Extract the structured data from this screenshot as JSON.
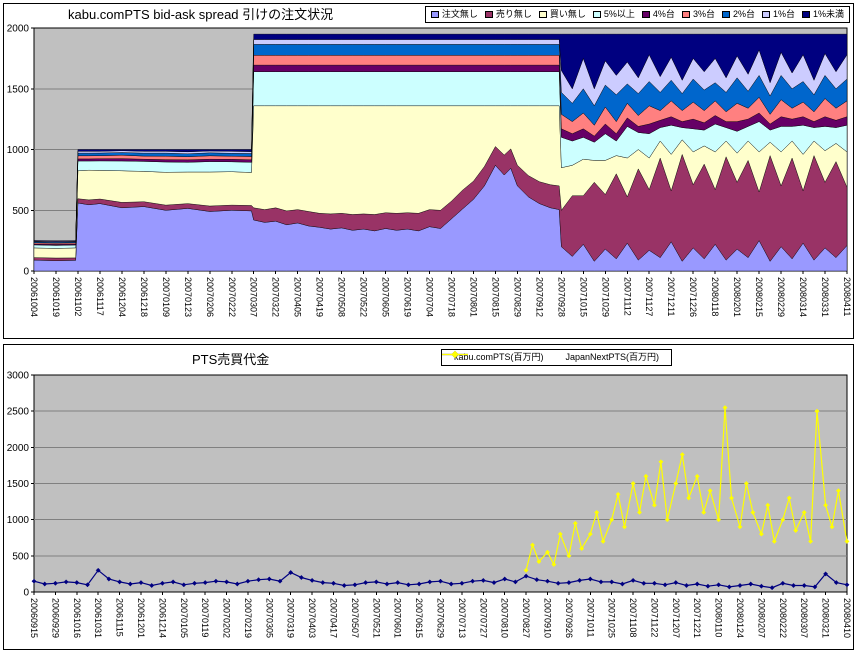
{
  "page": {
    "background": "#FFFFFF",
    "plot_background": "#C0C0C0",
    "grid_color": "#808080"
  },
  "chart_data": [
    {
      "type": "area",
      "stacked": true,
      "title": "kabu.comPTS bid-ask spread 引けの注文状況",
      "xlabel": "",
      "ylabel": "",
      "ylim": [
        0,
        2000
      ],
      "yticks": [
        0,
        500,
        1000,
        1500,
        2000
      ],
      "grid": true,
      "legend_position": "top-right",
      "plot_bg": "#C0C0C0",
      "grid_color": "#808080",
      "tick_labels": [
        "20061004",
        "20061019",
        "20061102",
        "20061117",
        "20061204",
        "20061218",
        "20070109",
        "20070123",
        "20070206",
        "20070222",
        "20070307",
        "20070322",
        "20070405",
        "20070419",
        "20070508",
        "20070522",
        "20070605",
        "20070619",
        "20070704",
        "20070718",
        "20070801",
        "20070815",
        "20070829",
        "20070912",
        "20070928",
        "20071015",
        "20071029",
        "20071112",
        "20071127",
        "20071211",
        "20071226",
        "20080118",
        "20080201",
        "20080215",
        "20080229",
        "20080314",
        "20080331",
        "20080411"
      ],
      "x": [
        0,
        1,
        1.9,
        2,
        2.5,
        3,
        4,
        5,
        6,
        7,
        8,
        9,
        9.9,
        10,
        10.5,
        11,
        11.5,
        12,
        12.5,
        13,
        13.5,
        14,
        14.5,
        15,
        15.5,
        16,
        16.5,
        17,
        17.5,
        18,
        18.5,
        19,
        19.5,
        20,
        20.5,
        21,
        21.4,
        21.7,
        22,
        22.5,
        23,
        23.5,
        23.9,
        24,
        24.5,
        25,
        25.5,
        26,
        26.5,
        27,
        27.5,
        28,
        28.5,
        29,
        29.5,
        30,
        30.5,
        31,
        31.5,
        32,
        32.5,
        33,
        33.5,
        34,
        34.5,
        35,
        35.5,
        36,
        36.5,
        37
      ],
      "series": [
        {
          "name": "注文無し",
          "color": "#9999FF",
          "values": [
            90,
            85,
            88,
            560,
            545,
            555,
            520,
            530,
            500,
            515,
            490,
            500,
            495,
            420,
            400,
            410,
            380,
            395,
            370,
            360,
            345,
            355,
            335,
            345,
            330,
            350,
            335,
            345,
            330,
            365,
            350,
            430,
            510,
            590,
            700,
            870,
            790,
            845,
            700,
            610,
            555,
            520,
            505,
            200,
            120,
            220,
            80,
            180,
            100,
            230,
            90,
            170,
            110,
            240,
            80,
            190,
            100,
            220,
            90,
            180,
            110,
            250,
            80,
            200,
            100,
            230,
            90,
            190,
            110,
            210
          ]
        },
        {
          "name": "売り無し",
          "color": "#993366",
          "values": [
            20,
            22,
            20,
            35,
            40,
            38,
            45,
            40,
            42,
            40,
            45,
            42,
            44,
            100,
            105,
            110,
            115,
            110,
            120,
            115,
            125,
            120,
            130,
            125,
            135,
            130,
            140,
            135,
            145,
            140,
            150,
            145,
            155,
            150,
            160,
            155,
            165,
            160,
            170,
            175,
            180,
            190,
            195,
            300,
            500,
            400,
            650,
            450,
            700,
            380,
            750,
            500,
            820,
            420,
            880,
            520,
            780,
            450,
            850,
            550,
            800,
            400,
            870,
            500,
            830,
            430,
            860,
            540,
            790,
            480
          ]
        },
        {
          "name": "買い無し",
          "color": "#FFFFCC",
          "values": [
            80,
            78,
            82,
            230,
            245,
            235,
            260,
            250,
            270,
            260,
            280,
            275,
            272,
            840,
            855,
            840,
            865,
            855,
            870,
            885,
            890,
            885,
            895,
            890,
            895,
            880,
            885,
            880,
            885,
            855,
            860,
            785,
            695,
            620,
            500,
            335,
            405,
            355,
            490,
            575,
            625,
            650,
            660,
            350,
            250,
            300,
            180,
            280,
            150,
            320,
            160,
            260,
            140,
            300,
            120,
            270,
            150,
            310,
            130,
            240,
            160,
            330,
            110,
            280,
            140,
            300,
            120,
            260,
            150,
            290
          ]
        },
        {
          "name": "5%以上",
          "color": "#CCFFFF",
          "values": [
            25,
            26,
            24,
            80,
            75,
            78,
            80,
            82,
            85,
            80,
            85,
            82,
            84,
            280,
            280,
            280,
            280,
            280,
            280,
            280,
            280,
            280,
            280,
            280,
            280,
            280,
            280,
            280,
            280,
            280,
            280,
            280,
            280,
            280,
            280,
            280,
            280,
            280,
            280,
            280,
            280,
            280,
            280,
            250,
            200,
            180,
            150,
            220,
            120,
            260,
            140,
            200,
            110,
            240,
            100,
            190,
            130,
            230,
            110,
            180,
            120,
            250,
            100,
            210,
            120,
            240,
            110,
            200,
            130,
            220
          ]
        },
        {
          "name": "4%台",
          "color": "#660066",
          "values": [
            8,
            8,
            8,
            18,
            18,
            18,
            20,
            18,
            20,
            20,
            20,
            20,
            20,
            55,
            55,
            55,
            55,
            55,
            55,
            55,
            55,
            55,
            55,
            55,
            55,
            55,
            55,
            55,
            55,
            55,
            55,
            55,
            55,
            55,
            55,
            55,
            55,
            55,
            55,
            55,
            55,
            55,
            55,
            70,
            60,
            70,
            50,
            80,
            60,
            70,
            50,
            80,
            60,
            70,
            50,
            80,
            60,
            70,
            50,
            80,
            60,
            70,
            50,
            80,
            60,
            70,
            50,
            80,
            60,
            70
          ]
        },
        {
          "name": "3%台",
          "color": "#FF8080",
          "values": [
            10,
            10,
            10,
            25,
            25,
            25,
            28,
            26,
            28,
            26,
            28,
            26,
            27,
            80,
            80,
            80,
            80,
            80,
            80,
            80,
            80,
            80,
            80,
            80,
            80,
            80,
            80,
            80,
            80,
            80,
            80,
            80,
            80,
            80,
            80,
            80,
            80,
            80,
            80,
            80,
            80,
            80,
            80,
            120,
            100,
            130,
            90,
            140,
            100,
            120,
            90,
            150,
            80,
            130,
            90,
            140,
            100,
            120,
            80,
            150,
            90,
            130,
            80,
            140,
            90,
            120,
            80,
            150,
            100,
            130
          ]
        },
        {
          "name": "2%台",
          "color": "#0066CC",
          "values": [
            8,
            8,
            8,
            22,
            22,
            22,
            22,
            24,
            25,
            24,
            25,
            24,
            25,
            90,
            90,
            90,
            90,
            90,
            90,
            90,
            90,
            90,
            90,
            90,
            90,
            90,
            90,
            90,
            90,
            90,
            90,
            90,
            90,
            90,
            90,
            90,
            90,
            90,
            90,
            90,
            90,
            90,
            90,
            180,
            150,
            200,
            160,
            180,
            220,
            160,
            180,
            200,
            150,
            170,
            140,
            190,
            170,
            150,
            160,
            210,
            140,
            180,
            150,
            200,
            160,
            170,
            140,
            190,
            160,
            180
          ]
        },
        {
          "name": "1%台",
          "color": "#CCCCFF",
          "values": [
            5,
            6,
            5,
            15,
            15,
            14,
            15,
            15,
            15,
            16,
            15,
            16,
            16,
            40,
            40,
            40,
            40,
            40,
            40,
            40,
            40,
            40,
            40,
            40,
            40,
            40,
            40,
            40,
            40,
            40,
            40,
            40,
            40,
            40,
            40,
            40,
            40,
            40,
            40,
            40,
            40,
            40,
            40,
            180,
            120,
            250,
            140,
            200,
            160,
            180,
            130,
            220,
            130,
            190,
            110,
            170,
            150,
            200,
            120,
            180,
            140,
            210,
            110,
            190,
            130,
            220,
            120,
            180,
            140,
            200
          ]
        },
        {
          "name": "1%未満",
          "color": "#000080",
          "values": [
            5,
            6,
            5,
            15,
            15,
            15,
            10,
            15,
            15,
            19,
            12,
            15,
            17,
            45,
            45,
            45,
            45,
            45,
            45,
            45,
            45,
            45,
            45,
            45,
            45,
            45,
            45,
            45,
            45,
            45,
            45,
            45,
            45,
            45,
            45,
            45,
            45,
            45,
            45,
            45,
            45,
            45,
            45,
            300,
            450,
            200,
            450,
            220,
            340,
            230,
            360,
            170,
            350,
            190,
            380,
            200,
            310,
            200,
            360,
            180,
            330,
            130,
            400,
            150,
            320,
            170,
            380,
            160,
            310,
            170
          ]
        }
      ]
    },
    {
      "type": "line",
      "title": "PTS売買代金",
      "xlabel": "",
      "ylabel": "",
      "ylim": [
        0,
        3000
      ],
      "yticks": [
        0,
        500,
        1000,
        1500,
        2000,
        2500,
        3000
      ],
      "grid": true,
      "legend_position": "top-right",
      "plot_bg": "#C0C0C0",
      "grid_color": "#808080",
      "tick_labels": [
        "20060915",
        "20060929",
        "20061016",
        "20061031",
        "20061115",
        "20061201",
        "20061214",
        "20070105",
        "20070119",
        "20070202",
        "20070219",
        "20070305",
        "20070319",
        "20070403",
        "20070417",
        "20070507",
        "20070521",
        "20070601",
        "20070615",
        "20070629",
        "20070713",
        "20070727",
        "20070810",
        "20070827",
        "20070910",
        "20070926",
        "20071011",
        "20071025",
        "20071108",
        "20071122",
        "20071207",
        "20071221",
        "20080110",
        "20080124",
        "20080207",
        "20080222",
        "20080307",
        "20080321",
        "20080410"
      ],
      "series": [
        {
          "name": "kabu.comPTS(百万円)",
          "color": "#000080",
          "x_start": 0,
          "x_step": 0.5,
          "values": [
            150,
            110,
            120,
            140,
            130,
            100,
            300,
            180,
            140,
            110,
            130,
            90,
            120,
            140,
            100,
            120,
            130,
            150,
            140,
            110,
            150,
            170,
            180,
            150,
            270,
            200,
            160,
            130,
            120,
            90,
            100,
            130,
            140,
            110,
            130,
            100,
            110,
            140,
            150,
            110,
            120,
            150,
            160,
            130,
            180,
            140,
            220,
            170,
            150,
            120,
            130,
            160,
            180,
            140,
            140,
            110,
            160,
            120,
            120,
            100,
            130,
            90,
            110,
            80,
            100,
            70,
            90,
            110,
            80,
            60,
            120,
            90,
            90,
            70,
            250,
            130,
            100
          ]
        },
        {
          "name": "JapanNextPTS(百万円)",
          "color": "#FFFF00",
          "x": [
            23,
            23.3,
            23.6,
            24,
            24.3,
            24.6,
            25,
            25.3,
            25.6,
            26,
            26.3,
            26.6,
            27,
            27.3,
            27.6,
            28,
            28.3,
            28.6,
            29,
            29.3,
            29.6,
            30,
            30.3,
            30.6,
            31,
            31.3,
            31.6,
            32,
            32.3,
            32.6,
            33,
            33.3,
            33.6,
            34,
            34.3,
            34.6,
            35,
            35.3,
            35.6,
            36,
            36.3,
            36.6,
            37,
            37.3,
            37.6,
            38
          ],
          "values": [
            300,
            650,
            420,
            550,
            380,
            800,
            500,
            950,
            600,
            800,
            1100,
            700,
            1000,
            1350,
            900,
            1500,
            1100,
            1600,
            1200,
            1800,
            1000,
            1500,
            1900,
            1300,
            1600,
            1100,
            1400,
            1000,
            2550,
            1300,
            900,
            1500,
            1100,
            800,
            1200,
            700,
            1000,
            1300,
            850,
            1100,
            700,
            2500,
            1200,
            900,
            1400,
            700
          ]
        }
      ]
    }
  ]
}
